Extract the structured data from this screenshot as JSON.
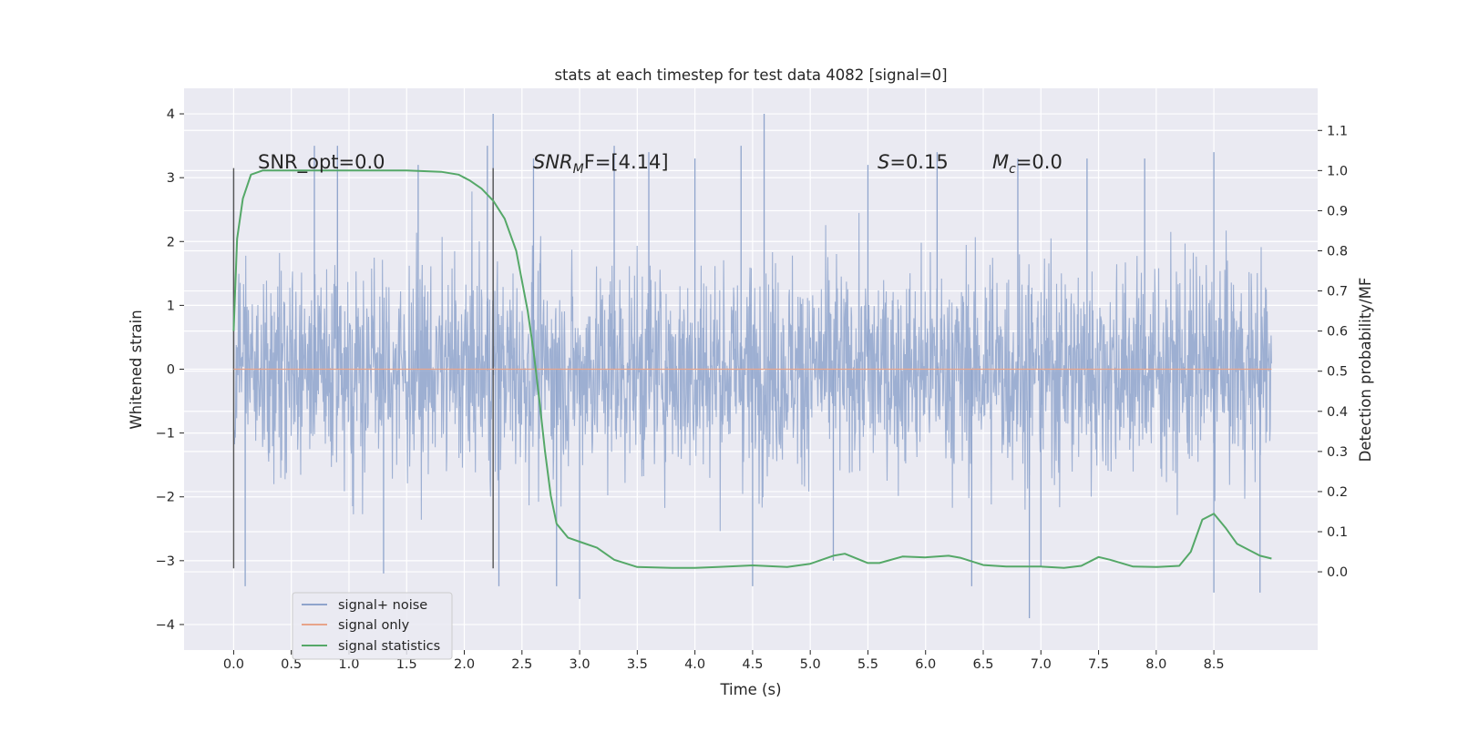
{
  "chart_data": {
    "type": "line",
    "title": "stats at each timestep for test data 4082 [signal=0]",
    "xlabel": "Time (s)",
    "ylabel_left": "Whitened strain",
    "ylabel_right": "Detection probability/MF",
    "grid": true,
    "x_ticks": [
      "0.0",
      "0.5",
      "1.0",
      "1.5",
      "2.0",
      "2.5",
      "3.0",
      "3.5",
      "4.0",
      "4.5",
      "5.0",
      "5.5",
      "6.0",
      "6.5",
      "7.0",
      "7.5",
      "8.0",
      "8.5"
    ],
    "y_left_ticks": [
      "4",
      "3",
      "2",
      "1",
      "0",
      "−1",
      "−2",
      "−3",
      "−4"
    ],
    "y_right_ticks": [
      "1.1",
      "1.0",
      "0.9",
      "0.8",
      "0.7",
      "0.6",
      "0.5",
      "0.4",
      "0.3",
      "0.2",
      "0.1",
      "0.0"
    ],
    "xlim": [
      -0.43,
      9.4
    ],
    "ylim_left": [
      -4.4,
      4.4
    ],
    "ylim_right": [
      -0.195,
      1.205
    ],
    "annotations": [
      {
        "text": "SNR_opt=0.0"
      },
      {
        "main": "SNR",
        "sub": "M",
        "rest": "F=[4.14]"
      },
      {
        "main": "S",
        "rest": "=0.15"
      },
      {
        "main": "M",
        "sub": "c",
        "rest": "=0.0"
      }
    ],
    "vertical_markers": [
      0.0,
      2.25
    ],
    "legend": {
      "placement": "lower-left",
      "entries": [
        {
          "label": "signal+ noise",
          "color": "#8fa4cc"
        },
        {
          "label": "signal only",
          "color": "#e8a48a"
        },
        {
          "label": "signal statistics",
          "color": "#55a868"
        }
      ]
    },
    "series": [
      {
        "name": "signal+ noise",
        "axis": "left",
        "color": "#8fa4cc",
        "description_range": [
          0.0,
          9.0
        ],
        "envelope_typical": [
          -2.0,
          2.0
        ],
        "extremes": [
          -3.9,
          4.0
        ],
        "sample_peaks": [
          [
            0.0,
            3.1
          ],
          [
            0.1,
            -3.4
          ],
          [
            0.7,
            3.5
          ],
          [
            0.9,
            3.5
          ],
          [
            1.3,
            -3.2
          ],
          [
            1.6,
            3.2
          ],
          [
            2.2,
            3.5
          ],
          [
            2.25,
            4.0
          ],
          [
            2.3,
            -3.4
          ],
          [
            2.6,
            3.3
          ],
          [
            2.8,
            -3.4
          ],
          [
            3.0,
            -3.6
          ],
          [
            3.3,
            3.5
          ],
          [
            3.6,
            3.4
          ],
          [
            4.0,
            3.3
          ],
          [
            4.4,
            3.5
          ],
          [
            4.5,
            -3.4
          ],
          [
            4.6,
            4.0
          ],
          [
            5.2,
            -3.0
          ],
          [
            5.5,
            3.2
          ],
          [
            6.1,
            3.4
          ],
          [
            6.4,
            -3.4
          ],
          [
            6.8,
            3.3
          ],
          [
            6.9,
            -3.9
          ],
          [
            7.0,
            -3.1
          ],
          [
            7.4,
            3.3
          ],
          [
            7.9,
            3.3
          ],
          [
            8.5,
            3.4
          ],
          [
            8.5,
            -3.5
          ],
          [
            8.9,
            -3.5
          ]
        ]
      },
      {
        "name": "signal only",
        "axis": "left",
        "color": "#e8a48a",
        "x": [
          0.0,
          9.0
        ],
        "y": [
          0.0,
          0.0
        ]
      },
      {
        "name": "signal statistics",
        "axis": "right",
        "color": "#55a868",
        "x": [
          0.0,
          0.03,
          0.08,
          0.15,
          0.25,
          0.5,
          1.0,
          1.5,
          1.8,
          1.95,
          2.05,
          2.15,
          2.25,
          2.35,
          2.45,
          2.55,
          2.6,
          2.65,
          2.7,
          2.75,
          2.8,
          2.9,
          3.0,
          3.15,
          3.3,
          3.5,
          3.8,
          4.0,
          4.2,
          4.5,
          4.8,
          5.0,
          5.2,
          5.3,
          5.5,
          5.6,
          5.8,
          6.0,
          6.2,
          6.3,
          6.5,
          6.7,
          7.0,
          7.2,
          7.35,
          7.5,
          7.6,
          7.8,
          8.0,
          8.2,
          8.3,
          8.4,
          8.5,
          8.6,
          8.7,
          8.9,
          9.0
        ],
        "y": [
          0.6,
          0.83,
          0.93,
          0.99,
          1.0,
          1.0,
          1.0,
          1.0,
          0.997,
          0.99,
          0.975,
          0.955,
          0.925,
          0.88,
          0.8,
          0.65,
          0.55,
          0.43,
          0.3,
          0.19,
          0.12,
          0.085,
          0.075,
          0.06,
          0.03,
          0.012,
          0.01,
          0.01,
          0.012,
          0.016,
          0.012,
          0.02,
          0.04,
          0.045,
          0.022,
          0.022,
          0.038,
          0.036,
          0.04,
          0.035,
          0.017,
          0.013,
          0.013,
          0.01,
          0.015,
          0.037,
          0.03,
          0.013,
          0.012,
          0.015,
          0.05,
          0.13,
          0.145,
          0.11,
          0.07,
          0.04,
          0.033
        ]
      }
    ]
  }
}
